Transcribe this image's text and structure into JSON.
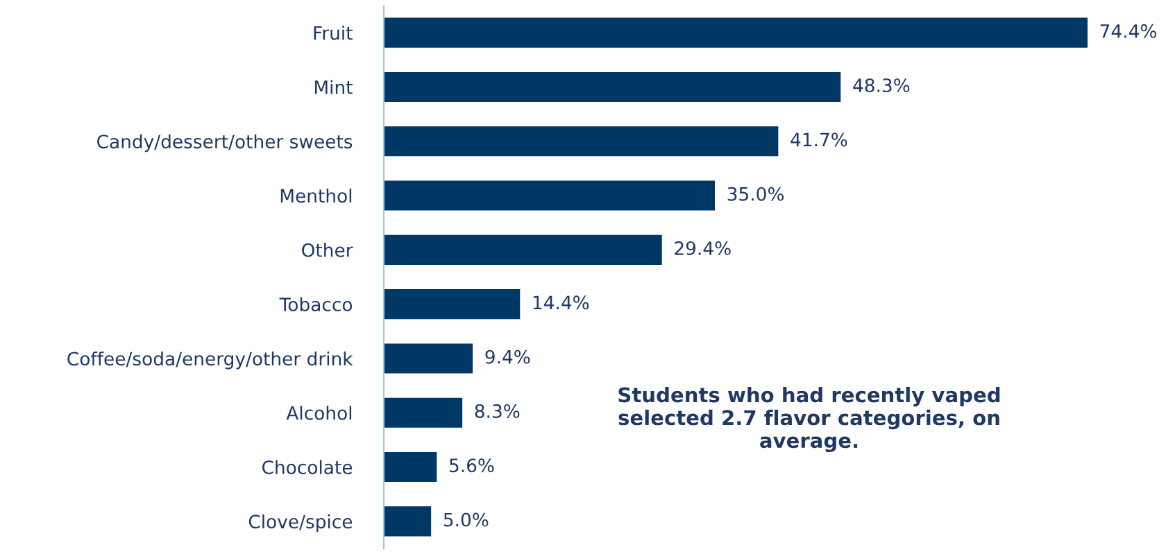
{
  "chart_data": {
    "type": "bar",
    "orientation": "horizontal",
    "categories": [
      "Fruit",
      "Mint",
      "Candy/dessert/other sweets",
      "Menthol",
      "Other",
      "Tobacco",
      "Coffee/soda/energy/other drink",
      "Alcohol",
      "Chocolate",
      "Clove/spice"
    ],
    "values": [
      74.4,
      48.3,
      41.7,
      35.0,
      29.4,
      14.4,
      9.4,
      8.3,
      5.6,
      5.0
    ],
    "value_labels": [
      "74.4%",
      "48.3%",
      "41.7%",
      "35.0%",
      "29.4%",
      "14.4%",
      "9.4%",
      "8.3%",
      "5.6%",
      "5.0%"
    ],
    "color": "#003865",
    "grid": false,
    "annotations": [
      "Students who had recently vaped selected 2.7 flavor categories, on average."
    ]
  }
}
